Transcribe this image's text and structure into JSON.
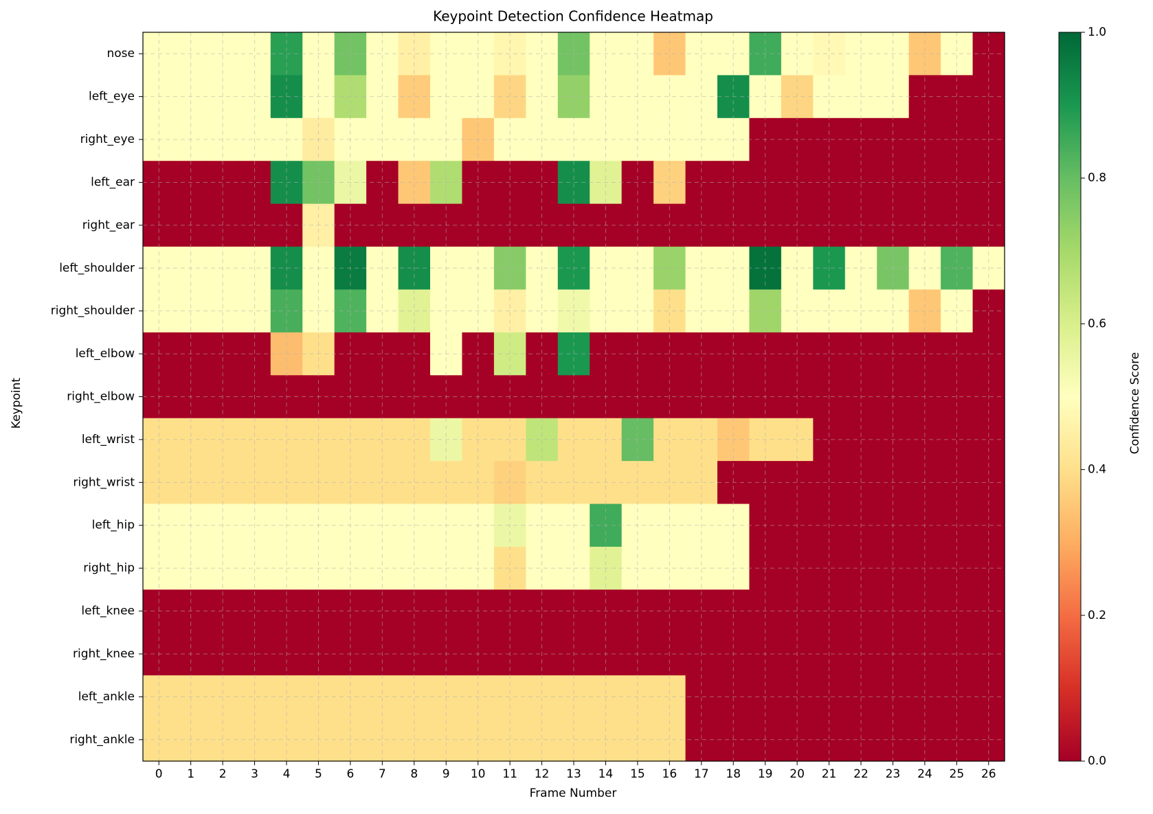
{
  "chart_data": {
    "type": "heatmap",
    "title": "Keypoint Detection Confidence Heatmap",
    "xlabel": "Frame Number",
    "ylabel": "Keypoint",
    "x_categories": [
      "0",
      "1",
      "2",
      "3",
      "4",
      "5",
      "6",
      "7",
      "8",
      "9",
      "10",
      "11",
      "12",
      "13",
      "14",
      "15",
      "16",
      "17",
      "18",
      "19",
      "20",
      "21",
      "22",
      "23",
      "24",
      "25",
      "26"
    ],
    "y_categories": [
      "nose",
      "left_eye",
      "right_eye",
      "left_ear",
      "right_ear",
      "left_shoulder",
      "right_shoulder",
      "left_elbow",
      "right_elbow",
      "left_wrist",
      "right_wrist",
      "left_hip",
      "right_hip",
      "left_knee",
      "right_knee",
      "left_ankle",
      "right_ankle"
    ],
    "values": [
      [
        0.5,
        0.5,
        0.5,
        0.5,
        0.88,
        0.5,
        0.78,
        0.5,
        0.45,
        0.5,
        0.5,
        0.47,
        0.5,
        0.78,
        0.5,
        0.5,
        0.35,
        0.5,
        0.5,
        0.85,
        0.5,
        0.48,
        0.5,
        0.5,
        0.35,
        0.5,
        0.0
      ],
      [
        0.5,
        0.5,
        0.5,
        0.5,
        0.92,
        0.5,
        0.68,
        0.5,
        0.36,
        0.5,
        0.5,
        0.38,
        0.5,
        0.73,
        0.5,
        0.5,
        0.5,
        0.5,
        0.92,
        0.5,
        0.38,
        0.5,
        0.5,
        0.5,
        0.0,
        0.0,
        0.0
      ],
      [
        0.5,
        0.5,
        0.5,
        0.5,
        0.5,
        0.44,
        0.5,
        0.5,
        0.5,
        0.5,
        0.35,
        0.5,
        0.5,
        0.5,
        0.5,
        0.5,
        0.5,
        0.5,
        0.5,
        0.0,
        0.0,
        0.0,
        0.0,
        0.0,
        0.0,
        0.0,
        0.0
      ],
      [
        0.0,
        0.0,
        0.0,
        0.0,
        0.92,
        0.78,
        0.55,
        0.0,
        0.35,
        0.68,
        0.0,
        0.0,
        0.0,
        0.92,
        0.58,
        0.0,
        0.37,
        0.0,
        0.0,
        0.0,
        0.0,
        0.0,
        0.0,
        0.0,
        0.0,
        0.0,
        0.0
      ],
      [
        0.0,
        0.0,
        0.0,
        0.0,
        0.0,
        0.45,
        0.0,
        0.0,
        0.0,
        0.0,
        0.0,
        0.0,
        0.0,
        0.0,
        0.0,
        0.0,
        0.0,
        0.0,
        0.0,
        0.0,
        0.0,
        0.0,
        0.0,
        0.0,
        0.0,
        0.0,
        0.0
      ],
      [
        0.5,
        0.5,
        0.5,
        0.5,
        0.92,
        0.5,
        0.96,
        0.5,
        0.92,
        0.5,
        0.5,
        0.75,
        0.5,
        0.9,
        0.5,
        0.5,
        0.72,
        0.5,
        0.5,
        0.98,
        0.5,
        0.9,
        0.5,
        0.77,
        0.5,
        0.83,
        0.5
      ],
      [
        0.5,
        0.5,
        0.5,
        0.5,
        0.84,
        0.5,
        0.83,
        0.5,
        0.58,
        0.5,
        0.5,
        0.45,
        0.5,
        0.54,
        0.5,
        0.5,
        0.4,
        0.5,
        0.5,
        0.71,
        0.5,
        0.5,
        0.5,
        0.5,
        0.35,
        0.5,
        0.0
      ],
      [
        0.0,
        0.0,
        0.0,
        0.0,
        0.33,
        0.4,
        0.0,
        0.0,
        0.0,
        0.5,
        0.0,
        0.62,
        0.0,
        0.9,
        0.0,
        0.0,
        0.0,
        0.0,
        0.0,
        0.0,
        0.0,
        0.0,
        0.0,
        0.0,
        0.0,
        0.0,
        0.0
      ],
      [
        0.0,
        0.0,
        0.0,
        0.0,
        0.0,
        0.0,
        0.0,
        0.0,
        0.0,
        0.0,
        0.0,
        0.0,
        0.0,
        0.0,
        0.0,
        0.0,
        0.0,
        0.0,
        0.0,
        0.0,
        0.0,
        0.0,
        0.0,
        0.0,
        0.0,
        0.0,
        0.0
      ],
      [
        0.4,
        0.4,
        0.4,
        0.4,
        0.4,
        0.4,
        0.4,
        0.4,
        0.4,
        0.55,
        0.4,
        0.4,
        0.65,
        0.4,
        0.4,
        0.8,
        0.4,
        0.4,
        0.35,
        0.4,
        0.4,
        0.0,
        0.0,
        0.0,
        0.0,
        0.0,
        0.0
      ],
      [
        0.4,
        0.4,
        0.4,
        0.4,
        0.4,
        0.4,
        0.4,
        0.4,
        0.4,
        0.4,
        0.4,
        0.37,
        0.4,
        0.4,
        0.4,
        0.4,
        0.4,
        0.4,
        0.0,
        0.0,
        0.0,
        0.0,
        0.0,
        0.0,
        0.0,
        0.0,
        0.0
      ],
      [
        0.5,
        0.5,
        0.5,
        0.5,
        0.5,
        0.5,
        0.5,
        0.5,
        0.5,
        0.5,
        0.5,
        0.55,
        0.5,
        0.5,
        0.85,
        0.5,
        0.5,
        0.5,
        0.5,
        0.0,
        0.0,
        0.0,
        0.0,
        0.0,
        0.0,
        0.0,
        0.0
      ],
      [
        0.5,
        0.5,
        0.5,
        0.5,
        0.5,
        0.5,
        0.5,
        0.5,
        0.5,
        0.5,
        0.5,
        0.4,
        0.5,
        0.5,
        0.58,
        0.5,
        0.5,
        0.5,
        0.5,
        0.0,
        0.0,
        0.0,
        0.0,
        0.0,
        0.0,
        0.0,
        0.0
      ],
      [
        0.0,
        0.0,
        0.0,
        0.0,
        0.0,
        0.0,
        0.0,
        0.0,
        0.0,
        0.0,
        0.0,
        0.0,
        0.0,
        0.0,
        0.0,
        0.0,
        0.0,
        0.0,
        0.0,
        0.0,
        0.0,
        0.0,
        0.0,
        0.0,
        0.0,
        0.0,
        0.0
      ],
      [
        0.0,
        0.0,
        0.0,
        0.0,
        0.0,
        0.0,
        0.0,
        0.0,
        0.0,
        0.0,
        0.0,
        0.0,
        0.0,
        0.0,
        0.0,
        0.0,
        0.0,
        0.0,
        0.0,
        0.0,
        0.0,
        0.0,
        0.0,
        0.0,
        0.0,
        0.0,
        0.0
      ],
      [
        0.4,
        0.4,
        0.4,
        0.4,
        0.4,
        0.4,
        0.4,
        0.4,
        0.4,
        0.4,
        0.4,
        0.4,
        0.4,
        0.4,
        0.4,
        0.4,
        0.4,
        0.0,
        0.0,
        0.0,
        0.0,
        0.0,
        0.0,
        0.0,
        0.0,
        0.0,
        0.0
      ],
      [
        0.4,
        0.4,
        0.4,
        0.4,
        0.4,
        0.4,
        0.4,
        0.4,
        0.4,
        0.4,
        0.4,
        0.4,
        0.4,
        0.4,
        0.4,
        0.4,
        0.4,
        0.0,
        0.0,
        0.0,
        0.0,
        0.0,
        0.0,
        0.0,
        0.0,
        0.0,
        0.0
      ]
    ],
    "colormap": "RdYlGn",
    "colorbar": {
      "label": "Confidence Score",
      "range": [
        0.0,
        1.0
      ],
      "ticks": [
        "0.0",
        "0.2",
        "0.4",
        "0.6",
        "0.8",
        "1.0"
      ]
    },
    "grid": true,
    "grid_style": "dashed"
  }
}
